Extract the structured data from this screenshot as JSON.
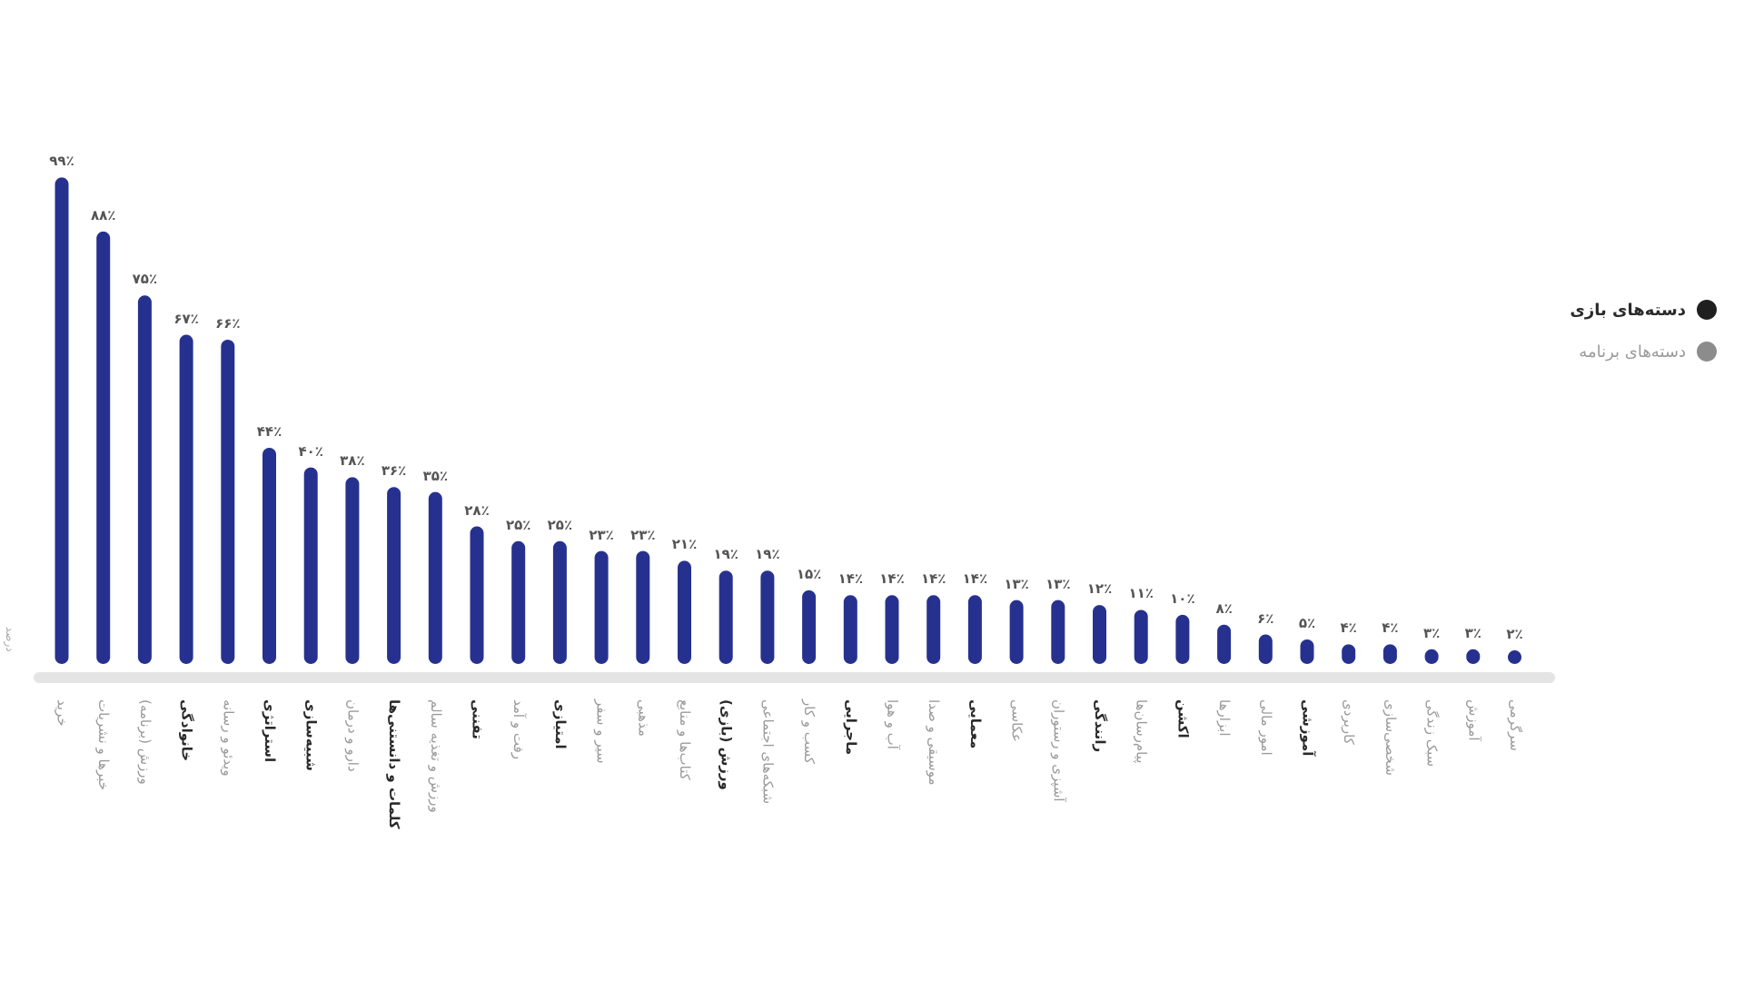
{
  "chart_data": {
    "type": "bar",
    "title": "",
    "xlabel": "",
    "ylabel": "درصد",
    "ylim": [
      0,
      100
    ],
    "grid": false,
    "legend_position": "right",
    "legend": [
      {
        "name": "دسته‌های بازی",
        "color": "#1f1f1f",
        "label_color": "#2a2a2a"
      },
      {
        "name": "دسته‌های برنامه",
        "color": "#8c8c8c",
        "label_color": "#9a9a9a"
      }
    ],
    "bar_color": "#26318f",
    "axis_color": "#e4e4e4",
    "categories": [
      {
        "label": "خرید",
        "group": "app"
      },
      {
        "label": "خبرها و نشریات",
        "group": "app"
      },
      {
        "label": "ورزش (برنامه)",
        "group": "app"
      },
      {
        "label": "خانوادگی",
        "group": "game"
      },
      {
        "label": "ویدئو و رسانه",
        "group": "app"
      },
      {
        "label": "استراتژی",
        "group": "game"
      },
      {
        "label": "شبیه‌سازی",
        "group": "game"
      },
      {
        "label": "دارو و درمان",
        "group": "app"
      },
      {
        "label": "کلمات و دانستنی‌ها",
        "group": "game"
      },
      {
        "label": "ورزش و تغذیه سالم",
        "group": "app"
      },
      {
        "label": "تفننی",
        "group": "game"
      },
      {
        "label": "رفت و آمد",
        "group": "app"
      },
      {
        "label": "امتیازی",
        "group": "game"
      },
      {
        "label": "سیر و سفر",
        "group": "app"
      },
      {
        "label": "مذهبی",
        "group": "app"
      },
      {
        "label": "کتاب‌ها و منابع",
        "group": "app"
      },
      {
        "label": "ورزش (بازی)",
        "group": "game"
      },
      {
        "label": "شبکه‌های اجتماعی",
        "group": "app"
      },
      {
        "label": "کسب و کار",
        "group": "app"
      },
      {
        "label": "ماجرایی",
        "group": "game"
      },
      {
        "label": "آب و هوا",
        "group": "app"
      },
      {
        "label": "موسیقی و صدا",
        "group": "app"
      },
      {
        "label": "معمایی",
        "group": "game"
      },
      {
        "label": "عکاسی",
        "group": "app"
      },
      {
        "label": "آشپزی و رستوران",
        "group": "app"
      },
      {
        "label": "رانندگی",
        "group": "game"
      },
      {
        "label": "پیام‌رسان‌ها",
        "group": "app"
      },
      {
        "label": "اکشن",
        "group": "game"
      },
      {
        "label": "ابزارها",
        "group": "app"
      },
      {
        "label": "امور مالی",
        "group": "app"
      },
      {
        "label": "آموزشی",
        "group": "game"
      },
      {
        "label": "کاربردی",
        "group": "app"
      },
      {
        "label": "شخصی‌سازی",
        "group": "app"
      },
      {
        "label": "سبک زندگی",
        "group": "app"
      },
      {
        "label": "آموزش",
        "group": "app"
      },
      {
        "label": "سرگرمی",
        "group": "app"
      }
    ],
    "values": [
      99,
      88,
      75,
      67,
      66,
      44,
      40,
      38,
      36,
      35,
      28,
      25,
      25,
      23,
      23,
      21,
      19,
      19,
      15,
      14,
      14,
      14,
      14,
      13,
      13,
      12,
      11,
      10,
      8,
      6,
      5,
      4,
      4,
      3,
      3,
      2
    ],
    "value_suffix": "٪"
  }
}
